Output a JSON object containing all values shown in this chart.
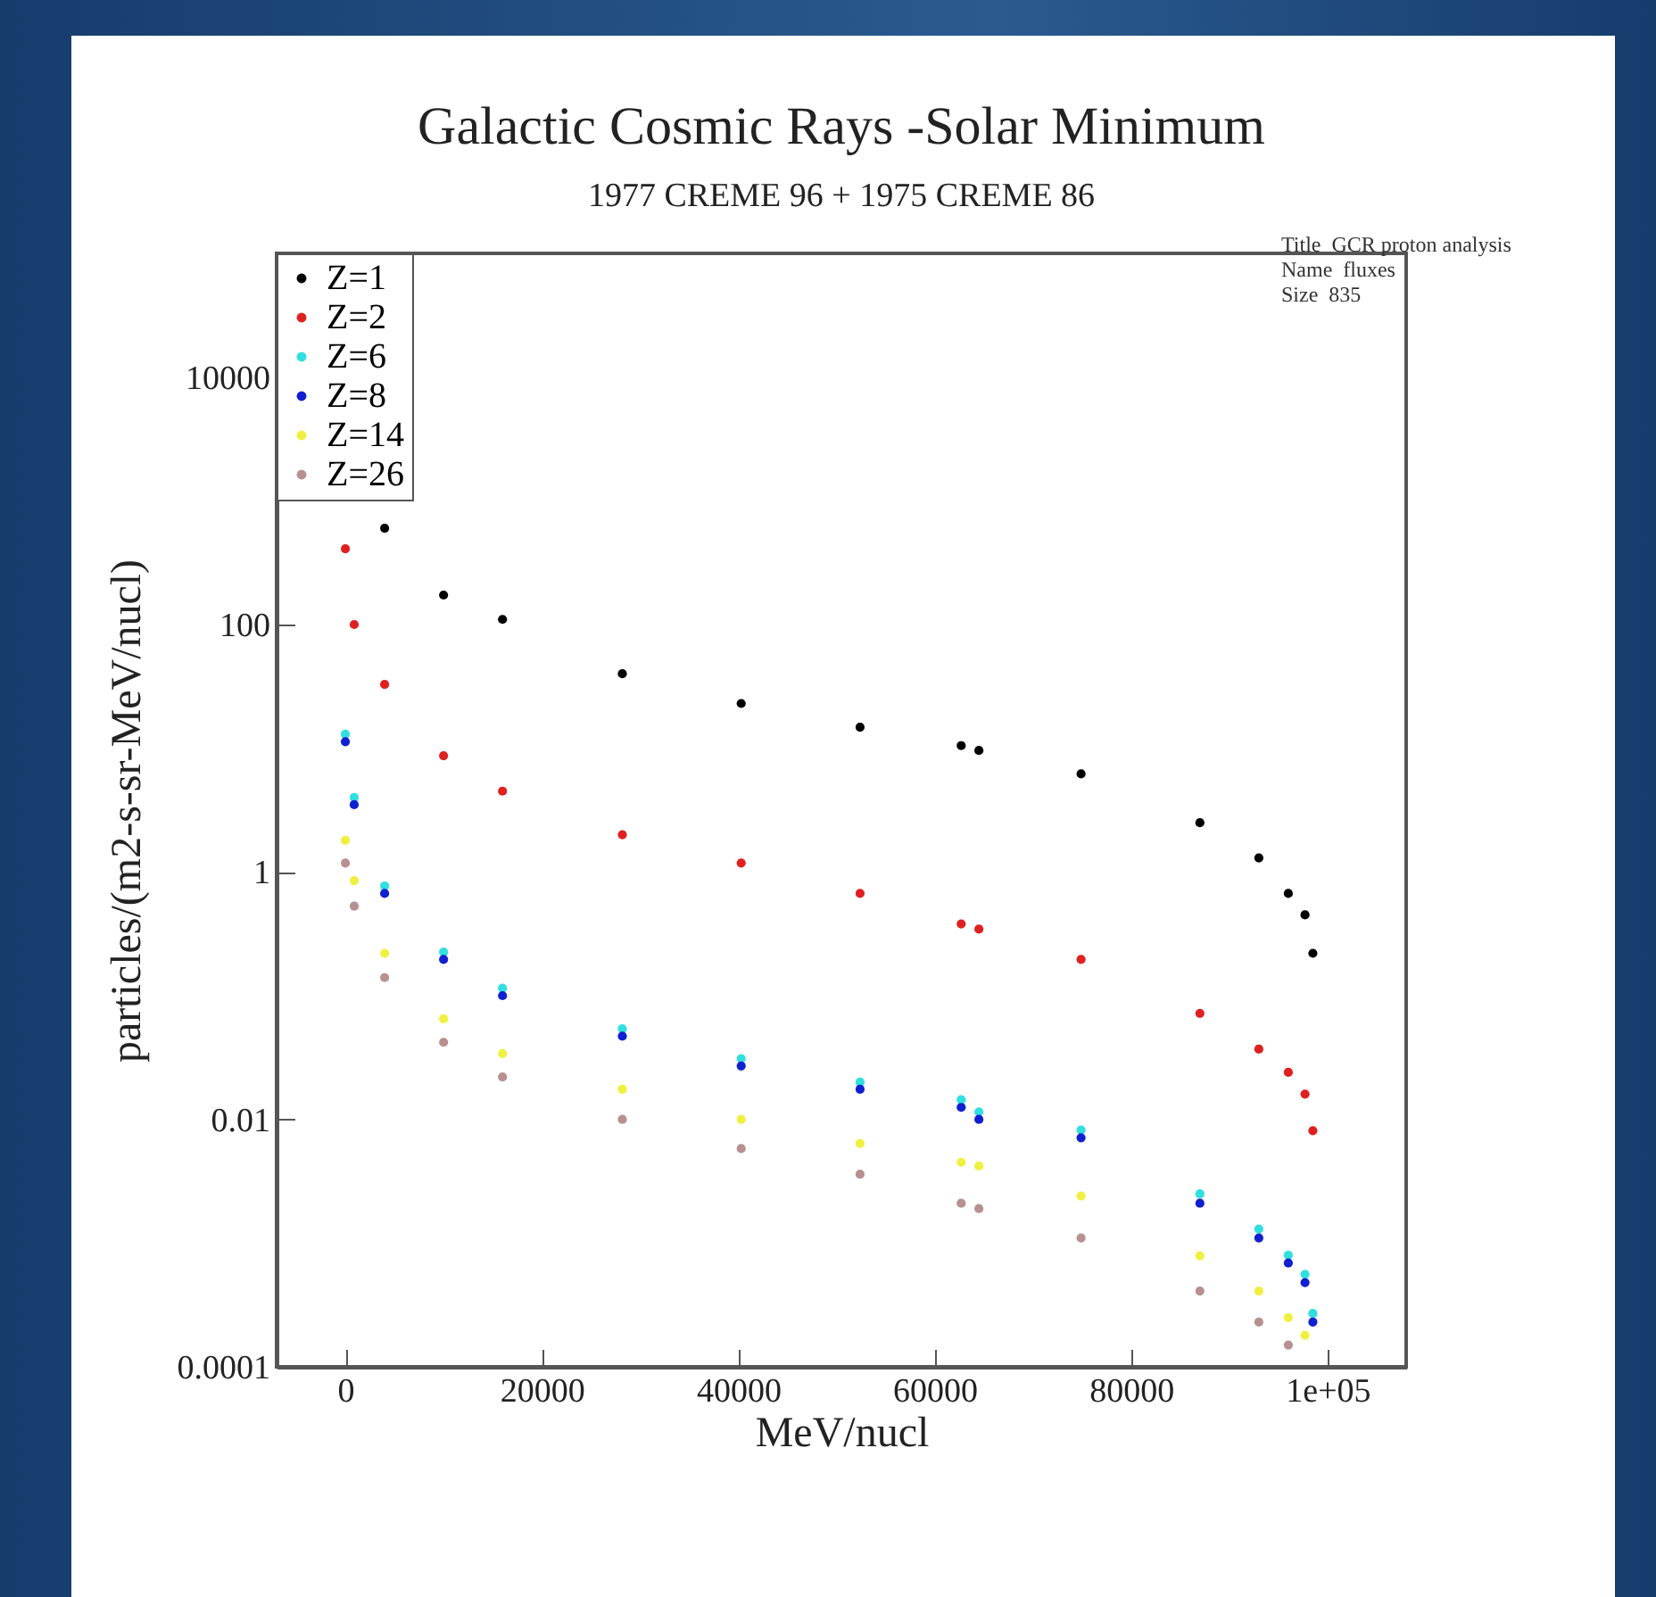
{
  "chart_data": {
    "type": "scatter",
    "title": "Galactic Cosmic Rays -Solar Minimum",
    "subtitle": "1977 CREME 96 + 1975 CREME 86",
    "xlabel": "MeV/nucl",
    "ylabel": "particles/(m2-s-sr-MeV/nucl)",
    "annotations": [
      "Title  GCR proton analysis",
      "Name  fluxes",
      "Size  835"
    ],
    "x": [
      0,
      900,
      4000,
      10000,
      16000,
      28200,
      40300,
      52400,
      62700,
      64500,
      74900,
      87000,
      93000,
      96000,
      97700,
      98500
    ],
    "series": [
      {
        "name": "Z=1",
        "color": "#000000",
        "values": [
          null,
          null,
          600,
          173,
          110,
          40,
          23,
          14.8,
          10.5,
          9.6,
          6.2,
          2.5,
          1.3,
          0.67,
          0.45,
          0.22
        ]
      },
      {
        "name": "Z=2",
        "color": "#e02020",
        "values": [
          410,
          100,
          32.8,
          8.7,
          4.5,
          2.0,
          1.18,
          0.67,
          0.38,
          0.345,
          0.196,
          0.072,
          0.037,
          0.024,
          0.016,
          0.0081
        ]
      },
      {
        "name": "Z=6",
        "color": "#30e0e0",
        "values": [
          13,
          4.0,
          0.77,
          0.225,
          0.115,
          0.054,
          0.031,
          0.02,
          0.0144,
          0.0115,
          0.0082,
          0.0025,
          0.0013,
          0.0008,
          0.00056,
          0.00027
        ]
      },
      {
        "name": "Z=8",
        "color": "#1020d0",
        "values": [
          11.3,
          3.5,
          0.67,
          0.196,
          0.1,
          0.047,
          0.027,
          0.0175,
          0.0125,
          0.01,
          0.0071,
          0.0021,
          0.0011,
          0.00069,
          0.00048,
          0.00023
        ]
      },
      {
        "name": "Z=14",
        "color": "#f0f040",
        "values": [
          1.8,
          0.85,
          0.22,
          0.065,
          0.034,
          0.0175,
          0.01,
          0.0064,
          0.0045,
          0.0042,
          0.0024,
          0.00079,
          0.00041,
          0.00025,
          0.00018,
          null
        ]
      },
      {
        "name": "Z=26",
        "color": "#b89090",
        "values": [
          1.18,
          0.53,
          0.14,
          0.042,
          0.022,
          0.01,
          0.0058,
          0.0036,
          0.0021,
          0.0019,
          0.0011,
          0.00041,
          0.00023,
          0.00015,
          null,
          null
        ]
      }
    ],
    "xlim": [
      -7000,
      108000
    ],
    "xticks": [
      0,
      20000,
      40000,
      60000,
      80000,
      {
        "value": 100000,
        "label": "1e+05"
      }
    ],
    "ylim": [
      0.0001,
      100000
    ],
    "yticks": [
      0.0001,
      0.01,
      1,
      100,
      10000
    ],
    "log": "y",
    "grid": false,
    "legend": "top left",
    "marker": "circle"
  }
}
